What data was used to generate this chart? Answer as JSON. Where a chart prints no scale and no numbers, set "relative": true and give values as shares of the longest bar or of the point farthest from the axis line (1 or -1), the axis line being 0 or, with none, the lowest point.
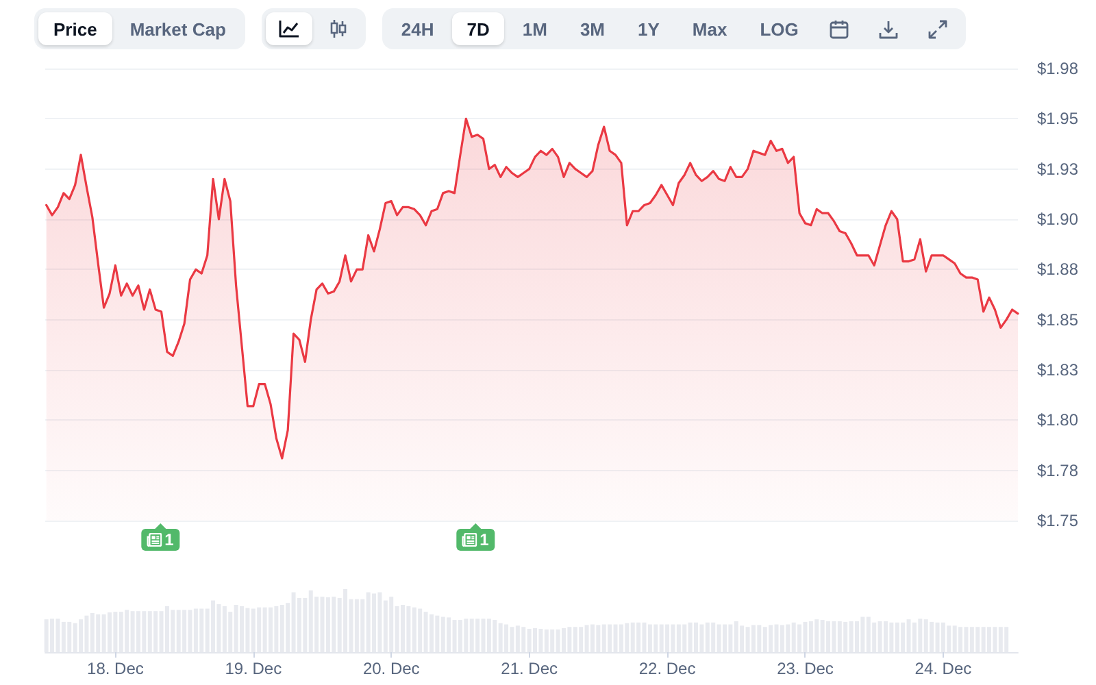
{
  "chart_data": [
    {
      "type": "area",
      "color": "#ea3943",
      "marker": "none",
      "grid": "y",
      "tick_labels": "y",
      "xlim": [
        "--12-17T11:48",
        "--12-24T13:00"
      ],
      "ylim": [
        1.75,
        1.975
      ],
      "yticks": [
        {
          "value": 1.75,
          "label": "$1.75"
        },
        {
          "value": 1.775,
          "label": "$1.78"
        },
        {
          "value": 1.8,
          "label": "$1.80"
        },
        {
          "value": 1.825,
          "label": "$1.83"
        },
        {
          "value": 1.85,
          "label": "$1.85"
        },
        {
          "value": 1.875,
          "label": "$1.88"
        },
        {
          "value": 1.9,
          "label": "$1.90"
        },
        {
          "value": 1.925,
          "label": "$1.93"
        },
        {
          "value": 1.95,
          "label": "$1.95"
        },
        {
          "value": 1.975,
          "label": "$1.98"
        }
      ],
      "x": [
        "--12-17T12:00",
        "--12-17T13:00",
        "--12-17T14:00",
        "--12-17T15:00",
        "--12-17T16:00",
        "--12-17T17:00",
        "--12-17T18:00",
        "--12-17T19:00",
        "--12-17T20:00",
        "--12-17T21:00",
        "--12-17T22:00",
        "--12-17T23:00",
        "--12-18T00:00",
        "--12-18T01:00",
        "--12-18T02:00",
        "--12-18T03:00",
        "--12-18T04:00",
        "--12-18T05:00",
        "--12-18T06:00",
        "--12-18T07:00",
        "--12-18T08:00",
        "--12-18T09:00",
        "--12-18T10:00",
        "--12-18T11:00",
        "--12-18T12:00",
        "--12-18T13:00",
        "--12-18T14:00",
        "--12-18T15:00",
        "--12-18T16:00",
        "--12-18T17:00",
        "--12-18T18:00",
        "--12-18T19:00",
        "--12-18T20:00",
        "--12-18T21:00",
        "--12-18T22:00",
        "--12-18T23:00",
        "--12-19T00:00",
        "--12-19T01:00",
        "--12-19T02:00",
        "--12-19T03:00",
        "--12-19T04:00",
        "--12-19T05:00",
        "--12-19T06:00",
        "--12-19T07:00",
        "--12-19T08:00",
        "--12-19T09:00",
        "--12-19T10:00",
        "--12-19T11:00",
        "--12-19T12:00",
        "--12-19T13:00",
        "--12-19T14:00",
        "--12-19T15:00",
        "--12-19T16:00",
        "--12-19T17:00",
        "--12-19T18:00",
        "--12-19T19:00",
        "--12-19T20:00",
        "--12-19T21:00",
        "--12-19T22:00",
        "--12-19T23:00",
        "--12-20T00:00",
        "--12-20T01:00",
        "--12-20T02:00",
        "--12-20T03:00",
        "--12-20T04:00",
        "--12-20T05:00",
        "--12-20T06:00",
        "--12-20T07:00",
        "--12-20T08:00",
        "--12-20T09:00",
        "--12-20T10:00",
        "--12-20T11:00",
        "--12-20T12:00",
        "--12-20T13:00",
        "--12-20T14:00",
        "--12-20T15:00",
        "--12-20T16:00",
        "--12-20T17:00",
        "--12-20T18:00",
        "--12-20T19:00",
        "--12-20T20:00",
        "--12-20T21:00",
        "--12-20T22:00",
        "--12-20T23:00",
        "--12-21T00:00",
        "--12-21T01:00",
        "--12-21T02:00",
        "--12-21T03:00",
        "--12-21T04:00",
        "--12-21T05:00",
        "--12-21T06:00",
        "--12-21T07:00",
        "--12-21T08:00",
        "--12-21T09:00",
        "--12-21T10:00",
        "--12-21T11:00",
        "--12-21T12:00",
        "--12-21T13:00",
        "--12-21T14:00",
        "--12-21T15:00",
        "--12-21T16:00",
        "--12-21T17:00",
        "--12-21T18:00",
        "--12-21T19:00",
        "--12-21T20:00",
        "--12-21T21:00",
        "--12-21T22:00",
        "--12-21T23:00",
        "--12-22T00:00",
        "--12-22T01:00",
        "--12-22T02:00",
        "--12-22T03:00",
        "--12-22T04:00",
        "--12-22T05:00",
        "--12-22T06:00",
        "--12-22T07:00",
        "--12-22T08:00",
        "--12-22T09:00",
        "--12-22T10:00",
        "--12-22T11:00",
        "--12-22T12:00",
        "--12-22T13:00",
        "--12-22T14:00",
        "--12-22T15:00",
        "--12-22T16:00",
        "--12-22T17:00",
        "--12-22T18:00",
        "--12-22T19:00",
        "--12-22T20:00",
        "--12-22T21:00",
        "--12-22T22:00",
        "--12-22T23:00",
        "--12-23T00:00",
        "--12-23T01:00",
        "--12-23T02:00",
        "--12-23T03:00",
        "--12-23T04:00",
        "--12-23T05:00",
        "--12-23T06:00",
        "--12-23T07:00",
        "--12-23T08:00",
        "--12-23T09:00",
        "--12-23T10:00",
        "--12-23T11:00",
        "--12-23T12:00",
        "--12-23T13:00",
        "--12-23T14:00",
        "--12-23T15:00",
        "--12-23T16:00",
        "--12-23T17:00",
        "--12-23T18:00",
        "--12-23T19:00",
        "--12-23T20:00",
        "--12-23T21:00",
        "--12-23T22:00",
        "--12-23T23:00",
        "--12-24T00:00",
        "--12-24T01:00",
        "--12-24T02:00",
        "--12-24T03:00",
        "--12-24T04:00",
        "--12-24T05:00",
        "--12-24T06:00",
        "--12-24T07:00",
        "--12-24T08:00",
        "--12-24T09:00",
        "--12-24T10:00",
        "--12-24T11:00",
        "--12-24T12:00",
        "--12-24T13:00"
      ],
      "values": [
        1.907,
        1.902,
        1.906,
        1.913,
        1.91,
        1.917,
        1.932,
        1.916,
        1.901,
        1.878,
        1.856,
        1.863,
        1.877,
        1.862,
        1.868,
        1.862,
        1.867,
        1.855,
        1.865,
        1.855,
        1.854,
        1.834,
        1.832,
        1.839,
        1.848,
        1.87,
        1.875,
        1.873,
        1.882,
        1.92,
        1.9,
        1.92,
        1.909,
        1.867,
        1.837,
        1.807,
        1.807,
        1.818,
        1.818,
        1.808,
        1.791,
        1.781,
        1.795,
        1.843,
        1.84,
        1.829,
        1.85,
        1.865,
        1.868,
        1.863,
        1.864,
        1.869,
        1.882,
        1.869,
        1.875,
        1.875,
        1.892,
        1.884,
        1.895,
        1.908,
        1.909,
        1.902,
        1.906,
        1.906,
        1.905,
        1.902,
        1.897,
        1.904,
        1.905,
        1.913,
        1.914,
        1.913,
        1.932,
        1.95,
        1.941,
        1.942,
        1.94,
        1.925,
        1.927,
        1.921,
        1.926,
        1.923,
        1.921,
        1.923,
        1.925,
        1.931,
        1.934,
        1.932,
        1.935,
        1.931,
        1.921,
        1.928,
        1.925,
        1.923,
        1.921,
        1.924,
        1.937,
        1.946,
        1.934,
        1.932,
        1.928,
        1.897,
        1.904,
        1.904,
        1.907,
        1.908,
        1.912,
        1.917,
        1.912,
        1.907,
        1.918,
        1.922,
        1.928,
        1.922,
        1.919,
        1.921,
        1.924,
        1.92,
        1.919,
        1.926,
        1.921,
        1.921,
        1.925,
        1.934,
        1.933,
        1.932,
        1.939,
        1.934,
        1.935,
        1.928,
        1.931,
        1.903,
        1.898,
        1.897,
        1.905,
        1.903,
        1.903,
        1.899,
        1.894,
        1.893,
        1.888,
        1.882,
        1.882,
        1.882,
        1.877,
        1.887,
        1.897,
        1.904,
        1.9,
        1.879,
        1.879,
        1.88,
        1.89,
        1.874,
        1.882,
        1.882,
        1.882,
        1.88,
        1.878,
        1.873,
        1.871,
        1.871,
        1.87,
        1.854,
        1.861,
        1.855,
        1.846,
        1.85,
        1.855,
        1.853
      ],
      "annotations": [
        "Price",
        "Market Cap",
        "24H",
        "7D",
        "1M",
        "3M",
        "1Y",
        "Max",
        "LOG"
      ]
    },
    {
      "type": "bar",
      "relative": true,
      "color": "#e8eaef",
      "xlim": [
        "--12-17T11:48",
        "--12-24T13:00"
      ],
      "xticks": [
        {
          "value": "--12-18",
          "label": "18. Dec"
        },
        {
          "value": "--12-19",
          "label": "19. Dec"
        },
        {
          "value": "--12-20",
          "label": "20. Dec"
        },
        {
          "value": "--12-21",
          "label": "21. Dec"
        },
        {
          "value": "--12-22",
          "label": "22. Dec"
        },
        {
          "value": "--12-23",
          "label": "23. Dec"
        },
        {
          "value": "--12-24",
          "label": "24. Dec"
        }
      ],
      "x": [
        "--12-17T12:00",
        "--12-17T13:00",
        "--12-17T14:00",
        "--12-17T15:00",
        "--12-17T16:00",
        "--12-17T17:00",
        "--12-17T18:00",
        "--12-17T19:00",
        "--12-17T20:00",
        "--12-17T21:00",
        "--12-17T22:00",
        "--12-17T23:00",
        "--12-18T00:00",
        "--12-18T01:00",
        "--12-18T02:00",
        "--12-18T03:00",
        "--12-18T04:00",
        "--12-18T05:00",
        "--12-18T06:00",
        "--12-18T07:00",
        "--12-18T08:00",
        "--12-18T09:00",
        "--12-18T10:00",
        "--12-18T11:00",
        "--12-18T12:00",
        "--12-18T13:00",
        "--12-18T14:00",
        "--12-18T15:00",
        "--12-18T16:00",
        "--12-18T17:00",
        "--12-18T18:00",
        "--12-18T19:00",
        "--12-18T20:00",
        "--12-18T21:00",
        "--12-18T22:00",
        "--12-18T23:00",
        "--12-19T00:00",
        "--12-19T01:00",
        "--12-19T02:00",
        "--12-19T03:00",
        "--12-19T04:00",
        "--12-19T05:00",
        "--12-19T06:00",
        "--12-19T07:00",
        "--12-19T08:00",
        "--12-19T09:00",
        "--12-19T10:00",
        "--12-19T11:00",
        "--12-19T12:00",
        "--12-19T13:00",
        "--12-19T14:00",
        "--12-19T15:00",
        "--12-19T16:00",
        "--12-19T17:00",
        "--12-19T18:00",
        "--12-19T19:00",
        "--12-19T20:00",
        "--12-19T21:00",
        "--12-19T22:00",
        "--12-19T23:00",
        "--12-20T00:00",
        "--12-20T01:00",
        "--12-20T02:00",
        "--12-20T03:00",
        "--12-20T04:00",
        "--12-20T05:00",
        "--12-20T06:00",
        "--12-20T07:00",
        "--12-20T08:00",
        "--12-20T09:00",
        "--12-20T10:00",
        "--12-20T11:00",
        "--12-20T12:00",
        "--12-20T13:00",
        "--12-20T14:00",
        "--12-20T15:00",
        "--12-20T16:00",
        "--12-20T17:00",
        "--12-20T18:00",
        "--12-20T19:00",
        "--12-20T20:00",
        "--12-20T21:00",
        "--12-20T22:00",
        "--12-20T23:00",
        "--12-21T00:00",
        "--12-21T01:00",
        "--12-21T02:00",
        "--12-21T03:00",
        "--12-21T04:00",
        "--12-21T05:00",
        "--12-21T06:00",
        "--12-21T07:00",
        "--12-21T08:00",
        "--12-21T09:00",
        "--12-21T10:00",
        "--12-21T11:00",
        "--12-21T12:00",
        "--12-21T13:00",
        "--12-21T14:00",
        "--12-21T15:00",
        "--12-21T16:00",
        "--12-21T17:00",
        "--12-21T18:00",
        "--12-21T19:00",
        "--12-21T20:00",
        "--12-21T21:00",
        "--12-21T22:00",
        "--12-21T23:00",
        "--12-22T00:00",
        "--12-22T01:00",
        "--12-22T02:00",
        "--12-22T03:00",
        "--12-22T04:00",
        "--12-22T05:00",
        "--12-22T06:00",
        "--12-22T07:00",
        "--12-22T08:00",
        "--12-22T09:00",
        "--12-22T10:00",
        "--12-22T11:00",
        "--12-22T12:00",
        "--12-22T13:00",
        "--12-22T14:00",
        "--12-22T15:00",
        "--12-22T16:00",
        "--12-22T17:00",
        "--12-22T18:00",
        "--12-22T19:00",
        "--12-22T20:00",
        "--12-22T21:00",
        "--12-22T22:00",
        "--12-22T23:00",
        "--12-23T00:00",
        "--12-23T01:00",
        "--12-23T02:00",
        "--12-23T03:00",
        "--12-23T04:00",
        "--12-23T05:00",
        "--12-23T06:00",
        "--12-23T07:00",
        "--12-23T08:00",
        "--12-23T09:00",
        "--12-23T10:00",
        "--12-23T11:00",
        "--12-23T12:00",
        "--12-23T13:00",
        "--12-23T14:00",
        "--12-23T15:00",
        "--12-23T16:00",
        "--12-23T17:00",
        "--12-23T18:00",
        "--12-23T19:00",
        "--12-23T20:00",
        "--12-23T21:00",
        "--12-23T22:00",
        "--12-23T23:00",
        "--12-24T00:00",
        "--12-24T01:00",
        "--12-24T02:00",
        "--12-24T03:00",
        "--12-24T04:00",
        "--12-24T05:00",
        "--12-24T06:00",
        "--12-24T07:00",
        "--12-24T08:00",
        "--12-24T09:00",
        "--12-24T10:00",
        "--12-24T11:00"
      ],
      "values": [
        0.52,
        0.53,
        0.53,
        0.48,
        0.48,
        0.46,
        0.52,
        0.58,
        0.62,
        0.6,
        0.6,
        0.63,
        0.64,
        0.64,
        0.67,
        0.65,
        0.65,
        0.65,
        0.65,
        0.65,
        0.65,
        0.73,
        0.67,
        0.67,
        0.67,
        0.67,
        0.69,
        0.69,
        0.69,
        0.82,
        0.76,
        0.73,
        0.64,
        0.75,
        0.73,
        0.7,
        0.69,
        0.71,
        0.71,
        0.71,
        0.73,
        0.75,
        0.78,
        0.95,
        0.86,
        0.86,
        0.98,
        0.88,
        0.88,
        0.87,
        0.88,
        0.86,
        1,
        0.84,
        0.84,
        0.84,
        0.95,
        0.93,
        0.95,
        0.82,
        0.88,
        0.73,
        0.75,
        0.73,
        0.71,
        0.69,
        0.64,
        0.6,
        0.58,
        0.56,
        0.55,
        0.51,
        0.51,
        0.53,
        0.53,
        0.53,
        0.53,
        0.53,
        0.51,
        0.46,
        0.44,
        0.4,
        0.42,
        0.4,
        0.37,
        0.38,
        0.37,
        0.36,
        0.36,
        0.36,
        0.38,
        0.4,
        0.4,
        0.4,
        0.43,
        0.44,
        0.43,
        0.44,
        0.44,
        0.44,
        0.44,
        0.46,
        0.47,
        0.47,
        0.47,
        0.44,
        0.44,
        0.44,
        0.44,
        0.44,
        0.44,
        0.44,
        0.47,
        0.47,
        0.44,
        0.47,
        0.47,
        0.44,
        0.44,
        0.44,
        0.49,
        0.42,
        0.4,
        0.43,
        0.43,
        0.4,
        0.43,
        0.44,
        0.43,
        0.44,
        0.47,
        0.44,
        0.48,
        0.49,
        0.52,
        0.51,
        0.49,
        0.49,
        0.49,
        0.48,
        0.49,
        0.49,
        0.56,
        0.56,
        0.47,
        0.49,
        0.49,
        0.47,
        0.47,
        0.47,
        0.52,
        0.47,
        0.53,
        0.52,
        0.48,
        0.47,
        0.47,
        0.42,
        0.42,
        0.4,
        0.4,
        0.4,
        0.4,
        0.4,
        0.4,
        0.4,
        0.4,
        0.4
      ],
      "annotations": [
        "1",
        "1"
      ]
    }
  ]
}
